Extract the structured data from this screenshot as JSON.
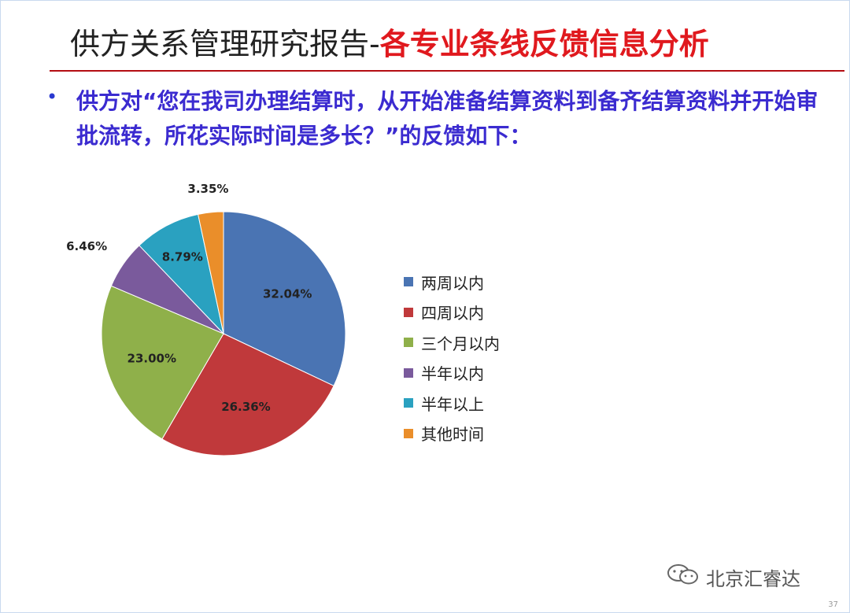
{
  "slide": {
    "title_main": "供方关系管理研究报告-",
    "title_sub": "各专业条线反馈信息分析",
    "bullet": "•",
    "question": "供方对“您在我司办理结算时，从开始准备结算资料到备齐结算资料并开始审批流转，所花实际时间是多长？”的反馈如下：",
    "watermark": "北京汇睿达",
    "page_number": "37"
  },
  "chart_data": {
    "type": "pie",
    "title": "",
    "legend_position": "right",
    "slices": [
      {
        "name": "两周以内",
        "value": 32.04,
        "label": "32.04%",
        "color": "#4a74b3"
      },
      {
        "name": "四周以内",
        "value": 26.36,
        "label": "26.36%",
        "color": "#c0393b"
      },
      {
        "name": "三个月以内",
        "value": 23.0,
        "label": "23.00%",
        "color": "#8fb04a"
      },
      {
        "name": "半年以内",
        "value": 6.46,
        "label": "6.46%",
        "color": "#7a5a9c"
      },
      {
        "name": "半年以上",
        "value": 8.79,
        "label": "8.79%",
        "color": "#2aa1c0"
      },
      {
        "name": "其他时间",
        "value": 3.35,
        "label": "3.35%",
        "color": "#ea8e2a"
      }
    ]
  }
}
